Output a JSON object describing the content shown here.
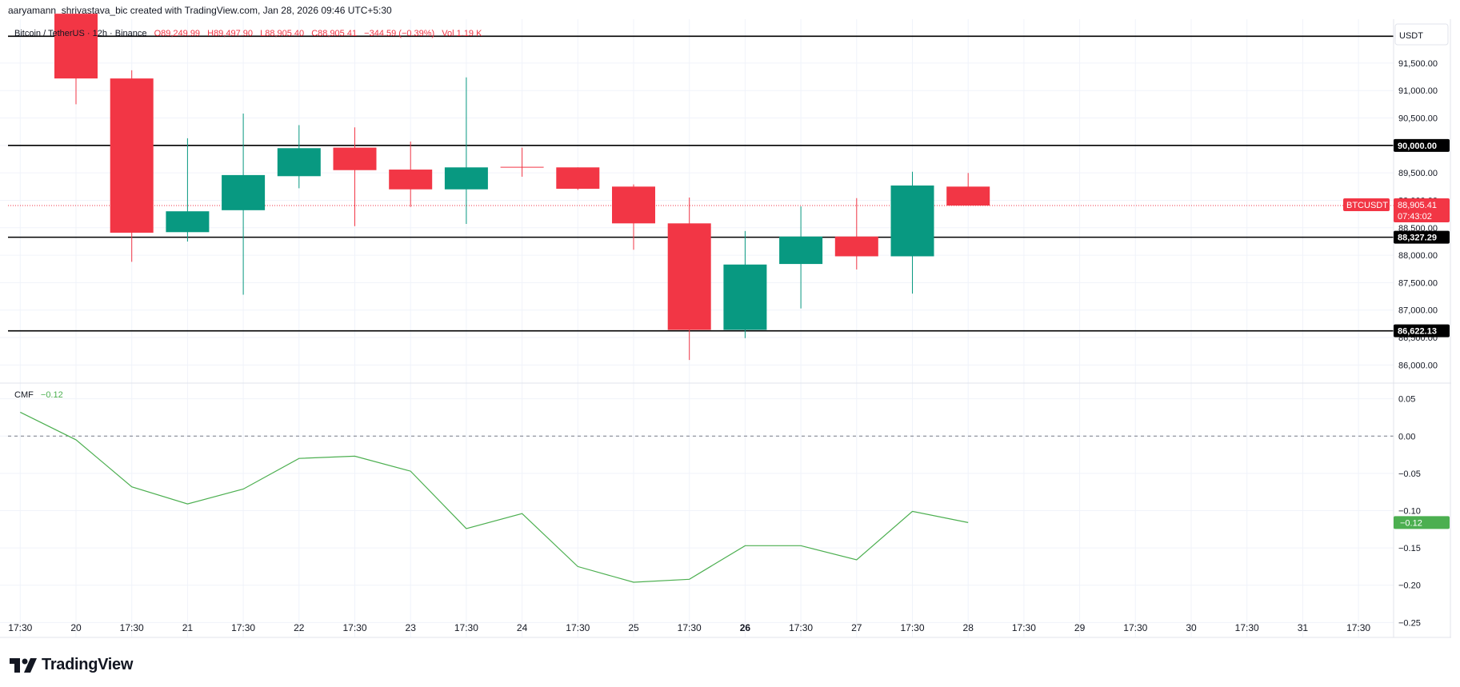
{
  "header": {
    "credit": "aaryamann_shrivastava_bic created with TradingView.com, Jan 28, 2026 09:46 UTC+5:30"
  },
  "legend": {
    "symbol": "Bitcoin / TetherUS · 12h · Binance",
    "open": "O89,249.99",
    "high": "H89,497.90",
    "low": "L88,905.40",
    "close": "C88,905.41",
    "change": "−344.59 (−0.39%)",
    "volume": "Vol 1.19 K"
  },
  "price_axis": {
    "currency": "USDT",
    "tick_values": [
      86000,
      86500,
      87000,
      87500,
      88000,
      88500,
      89000,
      89500,
      90000,
      90500,
      91000,
      91500
    ],
    "tick_labels": [
      "86,000.00",
      "86,500.00",
      "87,000.00",
      "87,500.00",
      "88,000.00",
      "88,500.00",
      "89,000.00",
      "89,500.00",
      "90,000.00",
      "90,500.00",
      "91,000.00",
      "91,500.00"
    ]
  },
  "horizontal_levels": [
    {
      "value": 91990,
      "label": ""
    },
    {
      "value": 90000,
      "label": "90,000.00"
    },
    {
      "value": 88327.29,
      "label": "88,327.29"
    },
    {
      "value": 86622.13,
      "label": "86,622.13"
    }
  ],
  "last_price": {
    "symbol": "BTCUSDT",
    "value": 88905.41,
    "label": "88,905.41",
    "countdown": "07:43:02"
  },
  "cmf": {
    "name": "CMF",
    "current": "−0.12",
    "badge": "−0.12",
    "tick_values": [
      0.05,
      0.0,
      -0.05,
      -0.1,
      -0.15,
      -0.2,
      -0.25
    ],
    "tick_labels": [
      "0.05",
      "0.00",
      "−0.05",
      "−0.10",
      "−0.15",
      "−0.20",
      "−0.25"
    ]
  },
  "time_axis": {
    "labels": [
      "17:30",
      "20",
      "17:30",
      "21",
      "17:30",
      "22",
      "17:30",
      "23",
      "17:30",
      "24",
      "17:30",
      "25",
      "17:30",
      "26",
      "17:30",
      "27",
      "17:30",
      "28",
      "17:30",
      "29",
      "17:30",
      "30",
      "17:30",
      "31",
      "17:30"
    ],
    "bold_label": "26"
  },
  "brand": {
    "name": "TradingView"
  },
  "colors": {
    "up": "#089981",
    "down": "#f23645",
    "cmf_line": "#4caf50",
    "level_line": "#000000",
    "grid": "#f0f3fa",
    "text": "#131722"
  },
  "chart_data": [
    {
      "type": "candlestick",
      "title": "Bitcoin / TetherUS · 12h · Binance",
      "x": [
        "20",
        "20 17:30",
        "21",
        "21 17:30",
        "22",
        "22 17:30",
        "23",
        "23 17:30",
        "24",
        "24 17:30",
        "25",
        "25 17:30",
        "26",
        "26 17:30",
        "27",
        "27 17:30",
        "28"
      ],
      "ohlc": [
        [
          92400,
          92400,
          90750,
          91220
        ],
        [
          91220,
          91370,
          87880,
          88410
        ],
        [
          88420,
          90130,
          88250,
          88800
        ],
        [
          88820,
          90580,
          87280,
          89460
        ],
        [
          89440,
          90370,
          89220,
          89950
        ],
        [
          89960,
          90330,
          88530,
          89550
        ],
        [
          89560,
          90070,
          88880,
          89200
        ],
        [
          89200,
          91240,
          88570,
          89600
        ],
        [
          89610,
          89960,
          89430,
          89600
        ],
        [
          89600,
          89600,
          89190,
          89210
        ],
        [
          89250,
          89290,
          88100,
          88580
        ],
        [
          88580,
          89050,
          86090,
          86640
        ],
        [
          86640,
          88440,
          86490,
          87830
        ],
        [
          87840,
          88890,
          87030,
          88340
        ],
        [
          88340,
          89040,
          87740,
          87980
        ],
        [
          87980,
          89520,
          87300,
          89270
        ],
        [
          89250,
          89498,
          88905,
          88905
        ]
      ],
      "ylim": [
        85670,
        92300
      ]
    },
    {
      "type": "line",
      "title": "CMF",
      "x": [
        "19 17:30",
        "20",
        "20 17:30",
        "21",
        "21 17:30",
        "22",
        "22 17:30",
        "23",
        "23 17:30",
        "24",
        "24 17:30",
        "25",
        "25 17:30",
        "26",
        "26 17:30",
        "27",
        "27 17:30",
        "28"
      ],
      "series": [
        {
          "name": "CMF",
          "values": [
            0.032,
            -0.005,
            -0.068,
            -0.091,
            -0.071,
            -0.03,
            -0.027,
            -0.047,
            -0.124,
            -0.104,
            -0.175,
            -0.196,
            -0.192,
            -0.147,
            -0.147,
            -0.166,
            -0.101,
            -0.116
          ]
        }
      ],
      "ylim": [
        -0.27,
        0.07
      ]
    }
  ]
}
